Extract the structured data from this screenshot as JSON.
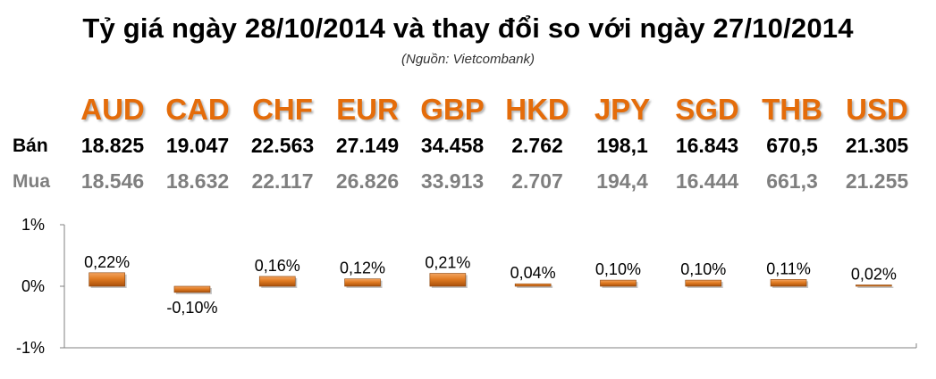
{
  "header": {
    "title": "Tỷ giá ngày 28/10/2014 và thay đổi so với ngày 27/10/2014",
    "source": "(Nguồn: Vietcombank)"
  },
  "table": {
    "sell_label": "Bán",
    "buy_label": "Mua",
    "currencies": [
      "AUD",
      "CAD",
      "CHF",
      "EUR",
      "GBP",
      "HKD",
      "JPY",
      "SGD",
      "THB",
      "USD"
    ],
    "sell": [
      "18.825",
      "19.047",
      "22.563",
      "27.149",
      "34.458",
      "2.762",
      "198,1",
      "16.843",
      "670,5",
      "21.305"
    ],
    "buy": [
      "18.546",
      "18.632",
      "22.117",
      "26.826",
      "33.913",
      "2.707",
      "194,4",
      "16.444",
      "661,3",
      "21.255"
    ]
  },
  "colors": {
    "accent": "#e46c0a",
    "bar": "#d2691e",
    "buy_text": "#7f7f7f"
  },
  "chart_data": {
    "type": "bar",
    "categories": [
      "AUD",
      "CAD",
      "CHF",
      "EUR",
      "GBP",
      "HKD",
      "JPY",
      "SGD",
      "THB",
      "USD"
    ],
    "values": [
      0.22,
      -0.1,
      0.16,
      0.12,
      0.21,
      0.04,
      0.1,
      0.1,
      0.11,
      0.02
    ],
    "data_labels": [
      "0,22%",
      "-0,10%",
      "0,16%",
      "0,12%",
      "0,21%",
      "0,04%",
      "0,10%",
      "0,10%",
      "0,11%",
      "0,02%"
    ],
    "title": "",
    "xlabel": "",
    "ylabel": "",
    "ylim": [
      -1,
      1
    ],
    "yticks": [
      1,
      0,
      -1
    ],
    "ytick_labels": [
      "1%",
      "0%",
      "-1%"
    ],
    "grid": false,
    "legend": "none"
  }
}
